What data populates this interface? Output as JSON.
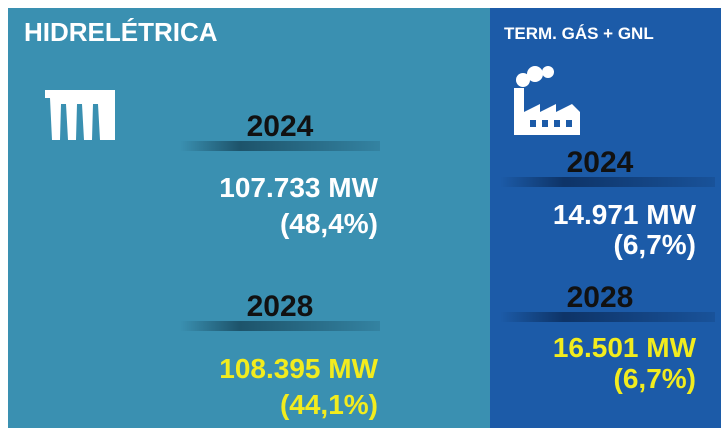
{
  "panels": [
    {
      "title": "HIDRELÉTRICA",
      "items": [
        {
          "year": "2024",
          "value": "107.733 MW",
          "share": "(48,4%)"
        },
        {
          "year": "2028",
          "value": "108.395 MW",
          "share": "(44,1%)"
        }
      ]
    },
    {
      "title": "TERM. GÁS + GNL",
      "items": [
        {
          "year": "2024",
          "value": "14.971 MW",
          "share": "(6,7%)"
        },
        {
          "year": "2028",
          "value": "16.501 MW",
          "share": "(6,7%)"
        }
      ]
    }
  ]
}
